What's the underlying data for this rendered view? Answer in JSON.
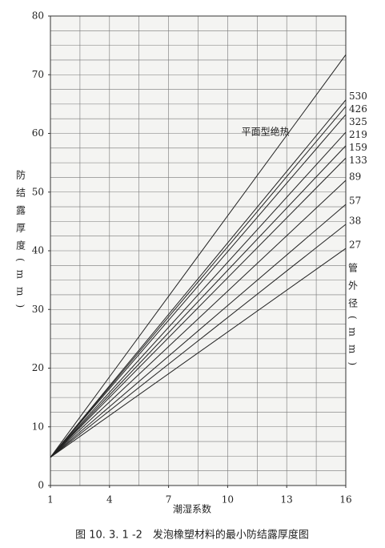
{
  "chart_data": {
    "type": "line",
    "caption": "图 10. 3. 1 -2　发泡橡塑材料的最小防结露厚度图",
    "x_label": "潮湿系数",
    "y_label": "防结露厚度(mm)",
    "legend_title": "管外径(mm)",
    "x": [
      1,
      16
    ],
    "series": [
      {
        "name": "平面型绝热",
        "color": "#222222",
        "values": [
          4.8,
          73.4
        ]
      },
      {
        "name": "530",
        "color": "#222222",
        "values": [
          4.8,
          65.7
        ]
      },
      {
        "name": "426",
        "color": "#222222",
        "values": [
          4.8,
          64.6
        ]
      },
      {
        "name": "325",
        "color": "#222222",
        "values": [
          4.8,
          63.2
        ]
      },
      {
        "name": "219",
        "color": "#222222",
        "values": [
          4.8,
          60.2
        ]
      },
      {
        "name": "159",
        "color": "#222222",
        "values": [
          4.8,
          57.9
        ]
      },
      {
        "name": "133",
        "color": "#222222",
        "values": [
          4.8,
          55.8
        ]
      },
      {
        "name": "89",
        "color": "#222222",
        "values": [
          4.8,
          52.0
        ]
      },
      {
        "name": "57",
        "color": "#222222",
        "values": [
          4.8,
          47.9
        ]
      },
      {
        "name": "38",
        "color": "#222222",
        "values": [
          4.8,
          44.5
        ]
      },
      {
        "name": "27",
        "color": "#222222",
        "values": [
          4.8,
          40.4
        ]
      }
    ],
    "xlim": [
      1,
      16
    ],
    "xticks": [
      1,
      4,
      7,
      10,
      13,
      16
    ],
    "ylim": [
      0,
      80
    ],
    "yticks": [
      0,
      10,
      20,
      30,
      40,
      50,
      60,
      70,
      80
    ],
    "x_grid_step": 1.5,
    "y_grid_step": 2.5,
    "grid": true
  }
}
